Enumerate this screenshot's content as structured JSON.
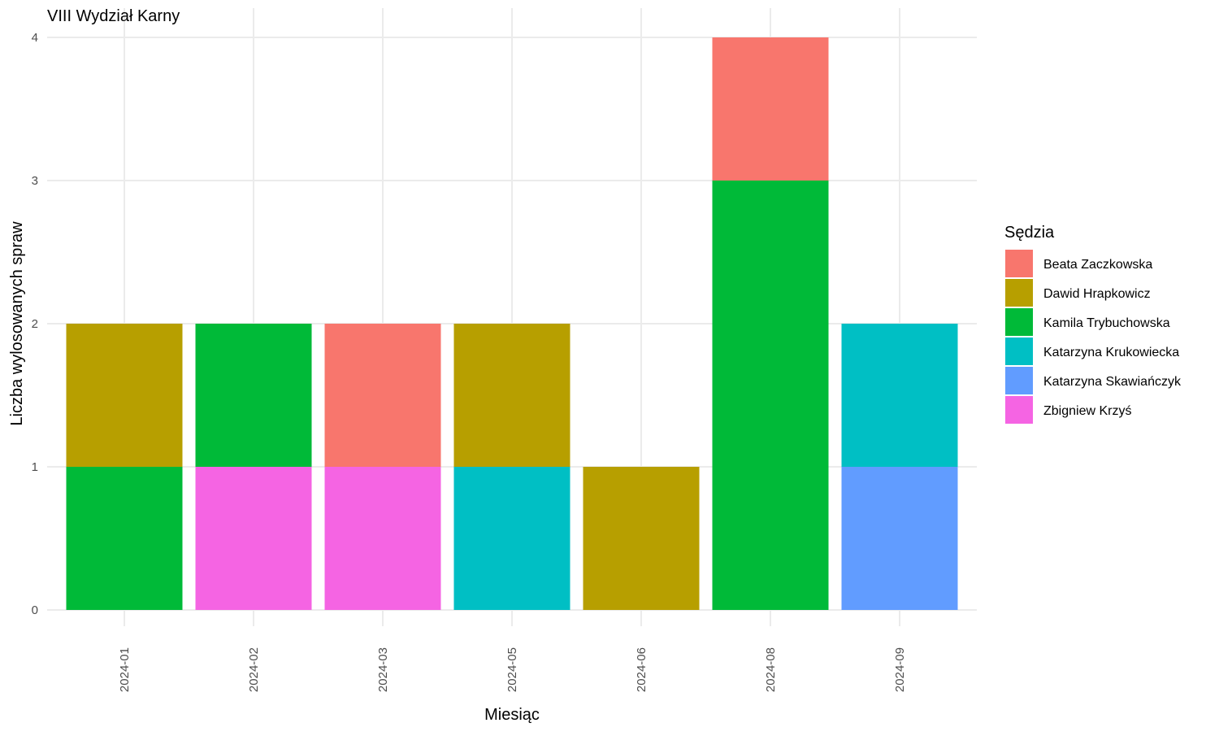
{
  "chart_data": {
    "type": "bar",
    "stacked": true,
    "title": "VIII Wydział Karny",
    "xlabel": "Miesiąc",
    "ylabel": "Liczba wylosowanych spraw",
    "categories": [
      "2024-01",
      "2024-02",
      "2024-03",
      "2024-05",
      "2024-06",
      "2024-08",
      "2024-09"
    ],
    "ylim": [
      0,
      4
    ],
    "y_ticks": [
      0,
      1,
      2,
      3,
      4
    ],
    "grid": true,
    "legend": {
      "title": "Sędzia",
      "placement": "right"
    },
    "series": [
      {
        "name": "Beata Zaczkowska",
        "color": "#F8766D",
        "values": [
          0,
          0,
          1,
          0,
          0,
          1,
          0
        ]
      },
      {
        "name": "Dawid Hrapkowicz",
        "color": "#B79F00",
        "values": [
          1,
          0,
          0,
          1,
          1,
          0,
          0
        ]
      },
      {
        "name": "Kamila Trybuchowska",
        "color": "#00BA38",
        "values": [
          1,
          1,
          0,
          0,
          0,
          3,
          0
        ]
      },
      {
        "name": "Katarzyna Krukowiecka",
        "color": "#00BFC4",
        "values": [
          0,
          0,
          0,
          1,
          0,
          0,
          1
        ]
      },
      {
        "name": "Katarzyna Skawiańczyk",
        "color": "#619CFF",
        "values": [
          0,
          0,
          0,
          0,
          0,
          0,
          1
        ]
      },
      {
        "name": "Zbigniew Krzyś",
        "color": "#F564E3",
        "values": [
          0,
          1,
          1,
          0,
          0,
          0,
          0
        ]
      }
    ]
  }
}
